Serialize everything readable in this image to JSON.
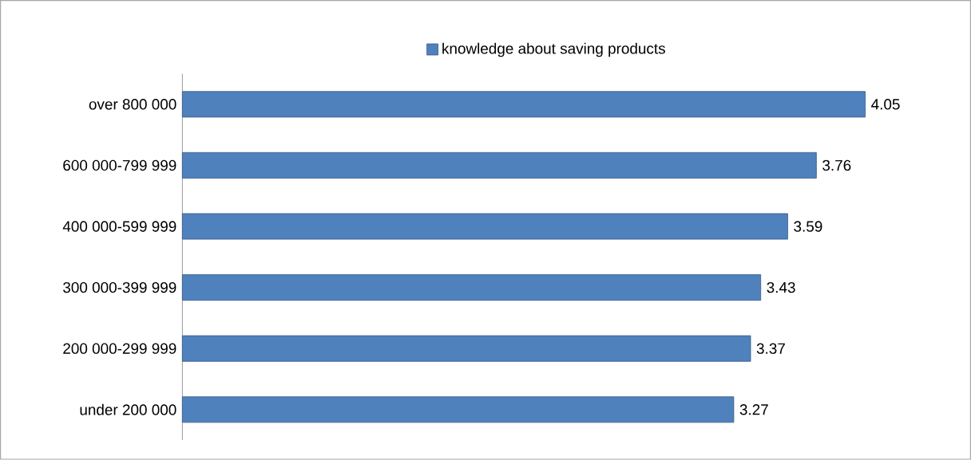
{
  "chart_data": {
    "type": "bar",
    "orientation": "horizontal",
    "categories": [
      "over 800 000",
      "600 000-799 999",
      "400 000-599 999",
      "300 000-399 999",
      "200 000-299 999",
      "under 200 000"
    ],
    "series": [
      {
        "name": "knowledge about saving products",
        "color": "#4f81bd",
        "values": [
          4.05,
          3.76,
          3.59,
          3.43,
          3.37,
          3.27
        ]
      }
    ],
    "data_labels": true,
    "legend": "top"
  }
}
